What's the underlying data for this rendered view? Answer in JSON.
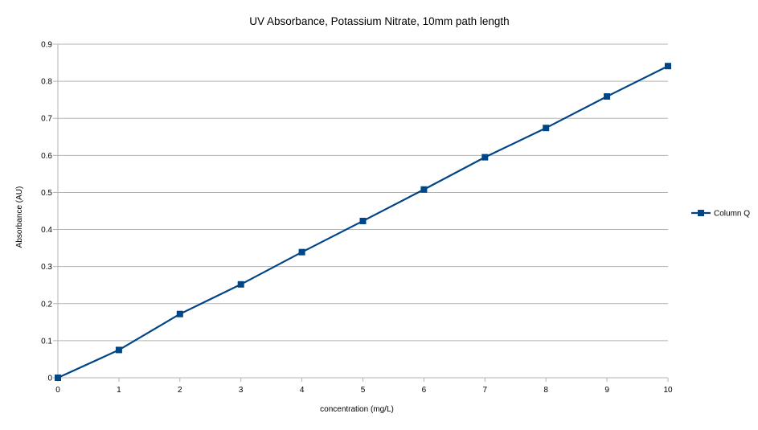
{
  "chart_data": {
    "type": "line",
    "title": "UV Absorbance, Potassium Nitrate, 10mm path length",
    "xlabel": "concentration (mg/L)",
    "ylabel": "Absorbance (AU)",
    "xlim": [
      0,
      10
    ],
    "ylim": [
      0,
      0.9
    ],
    "x_ticks": [
      "0",
      "1",
      "2",
      "3",
      "4",
      "5",
      "6",
      "7",
      "8",
      "9",
      "10"
    ],
    "y_ticks": [
      "0",
      "0.1",
      "0.2",
      "0.3",
      "0.4",
      "0.5",
      "0.6",
      "0.7",
      "0.8",
      "0.9"
    ],
    "grid": "horizontal",
    "legend_position": "right",
    "series": [
      {
        "name": "Column Q",
        "color": "#004586",
        "marker": "square",
        "x": [
          0,
          1,
          2,
          3,
          4,
          5,
          6,
          7,
          8,
          9,
          10
        ],
        "values": [
          0,
          0.075,
          0.172,
          0.252,
          0.339,
          0.423,
          0.508,
          0.595,
          0.674,
          0.759,
          0.841
        ]
      }
    ]
  }
}
